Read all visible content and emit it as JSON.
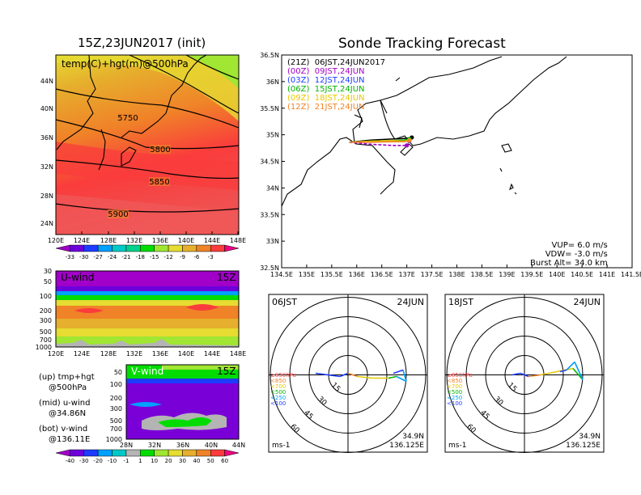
{
  "page": {
    "title_left": "15Z,23JUN2017 (init)",
    "title_right": "Sonde Tracking Forecast"
  },
  "map_panel": {
    "label": "temp(C)+hgt(m)@500hPa",
    "lat_labels": [
      "44N",
      "40N",
      "36N",
      "32N",
      "28N",
      "24N"
    ],
    "lon_labels": [
      "120E",
      "124E",
      "128E",
      "132E",
      "136E",
      "140E",
      "144E",
      "148E"
    ],
    "contour_labels": [
      "5750",
      "5800",
      "5850",
      "5900"
    ],
    "colorbar_labels": [
      "-33",
      "-30",
      "-27",
      "-24",
      "-21",
      "-18",
      "-15",
      "-12",
      "-9",
      "-6",
      "-3"
    ],
    "colorbar_colors": [
      "#a000c8",
      "#6e00dc",
      "#1e3cff",
      "#00a0ff",
      "#00c8c8",
      "#00d28c",
      "#00dc00",
      "#a0e632",
      "#e6dc32",
      "#e6af2d",
      "#f08228",
      "#fa3c3c",
      "#f00082"
    ]
  },
  "uwind_panel": {
    "label": "U-wind",
    "time": "15Z",
    "y_labels": [
      "30",
      "50",
      "100",
      "200",
      "300",
      "500",
      "700",
      "1000"
    ],
    "x_labels": [
      "120E",
      "124E",
      "128E",
      "132E",
      "136E",
      "140E",
      "144E",
      "148E"
    ]
  },
  "vwind_panel": {
    "label": "V-wind",
    "time": "15Z",
    "y_labels": [
      "50",
      "100",
      "200",
      "300",
      "500",
      "700",
      "1000"
    ],
    "x_labels": [
      "28N",
      "32N",
      "36N",
      "40N",
      "44N"
    ],
    "colorbar_labels": [
      "-40",
      "-30",
      "-20",
      "-10",
      "-1",
      "1",
      "10",
      "20",
      "30",
      "40",
      "50",
      "60"
    ],
    "colorbar_colors": [
      "#a000c8",
      "#6e00dc",
      "#1e3cff",
      "#00a0ff",
      "#00c8c8",
      "#b4b4b4",
      "#00dc00",
      "#a0e632",
      "#e6dc32",
      "#e6af2d",
      "#f08228",
      "#fa3c3c",
      "#f00082"
    ]
  },
  "legend_notes": [
    {
      "line1": "(up) tmp+hgt",
      "line2": "@500hPa"
    },
    {
      "line1": "(mid) u-wind",
      "line2": "@34.86N"
    },
    {
      "line1": "(bot) v-wind",
      "line2": "@136.11E"
    }
  ],
  "chart_data": {
    "type": "line",
    "title": "Sonde Tracking Forecast",
    "xlim": [
      134.5,
      141.5
    ],
    "ylim": [
      32.5,
      36.5
    ],
    "x_ticks": [
      "134.5E",
      "135E",
      "135.5E",
      "136E",
      "136.5E",
      "137E",
      "137.5E",
      "138E",
      "138.5E",
      "139E",
      "139.5E",
      "140E",
      "140.5E",
      "141E",
      "141.5E"
    ],
    "y_ticks": [
      "36.5N",
      "36N",
      "35.5N",
      "35N",
      "34.5N",
      "34N",
      "33.5N",
      "33N",
      "32.5N"
    ],
    "series": [
      {
        "name": "(21Z)  06JST,24JUN2017",
        "color": "#000000",
        "x": [
          135.85,
          136.3,
          136.7,
          136.95,
          137.05,
          137.1
        ],
        "y": [
          34.86,
          34.9,
          34.92,
          34.93,
          34.94,
          34.95
        ]
      },
      {
        "name": "(00Z)  09JST,24JUN",
        "color": "#a000c8",
        "x": [
          135.85,
          136.3,
          136.7,
          136.95,
          137.0
        ],
        "y": [
          34.86,
          34.82,
          34.8,
          34.8,
          34.8
        ]
      },
      {
        "name": "(03Z)  12JST,24JUN",
        "color": "#1e3cff",
        "x": [
          135.85,
          136.3,
          136.7,
          136.95,
          137.05
        ],
        "y": [
          34.86,
          34.87,
          34.88,
          34.88,
          34.88
        ]
      },
      {
        "name": "(06Z)  15JST,24JUN",
        "color": "#00b400",
        "x": [
          135.85,
          136.3,
          136.7,
          136.95,
          137.05
        ],
        "y": [
          34.86,
          34.88,
          34.89,
          34.9,
          34.92
        ]
      },
      {
        "name": "(09Z)  18JST,24JUN",
        "color": "#e6c800",
        "x": [
          135.85,
          136.3,
          136.7,
          136.95,
          137.05
        ],
        "y": [
          34.86,
          34.88,
          34.89,
          34.88,
          34.9
        ]
      },
      {
        "name": "(12Z)  21JST,24JUN",
        "color": "#f08228",
        "x": [
          135.85,
          136.3,
          136.7,
          136.95,
          137.05
        ],
        "y": [
          34.86,
          34.86,
          34.87,
          34.87,
          34.89
        ]
      }
    ],
    "annotations": [
      "VUP=  6.0  m/s",
      "VDW= -3.0  m/s",
      "Burst Alt=  34.0  km"
    ]
  },
  "hodographs": [
    {
      "time_label": "06JST",
      "date_label": "24JUN",
      "rings": [
        "15",
        "30",
        "45",
        "60"
      ],
      "pressure_legend": [
        {
          "label": "≥850hPa",
          "color": "#fa3c3c"
        },
        {
          "label": "<850",
          "color": "#f08228"
        },
        {
          "label": "<700",
          "color": "#e6c800"
        },
        {
          "label": "<500",
          "color": "#00b400"
        },
        {
          "label": "<250",
          "color": "#00a0ff"
        },
        {
          "label": "<100",
          "color": "#1e3cff"
        }
      ],
      "location_lat": "34.9N",
      "location_lon": "136.125E",
      "unit": "ms-1"
    },
    {
      "time_label": "18JST",
      "date_label": "24JUN",
      "rings": [
        "15",
        "30",
        "45",
        "60"
      ],
      "pressure_legend": [
        {
          "label": "≥850hPa",
          "color": "#fa3c3c"
        },
        {
          "label": "<850",
          "color": "#f08228"
        },
        {
          "label": "<700",
          "color": "#e6c800"
        },
        {
          "label": "<500",
          "color": "#00b400"
        },
        {
          "label": "<250",
          "color": "#00a0ff"
        },
        {
          "label": "<100",
          "color": "#1e3cff"
        }
      ],
      "location_lat": "34.9N",
      "location_lon": "136.125E",
      "unit": "ms-1"
    }
  ]
}
